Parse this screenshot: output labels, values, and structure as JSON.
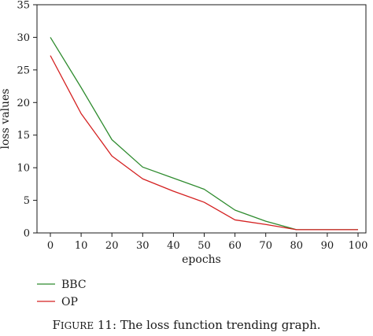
{
  "chart_data": {
    "type": "line",
    "xlabel": "epochs",
    "ylabel": "loss values",
    "xlim": [
      0,
      100
    ],
    "ylim": [
      0,
      35
    ],
    "xticks": [
      0,
      10,
      20,
      30,
      40,
      50,
      60,
      70,
      80,
      90,
      100
    ],
    "yticks": [
      0,
      5,
      10,
      15,
      20,
      25,
      30,
      35
    ],
    "grid": false,
    "legend_position": "bottom-left, below plot",
    "x": [
      0,
      10,
      20,
      30,
      40,
      50,
      60,
      70,
      80,
      90,
      100
    ],
    "series": [
      {
        "name": "BBC",
        "color": "#2e8b2e",
        "values": [
          30,
          22.3,
          14.3,
          10.1,
          8.4,
          6.7,
          3.5,
          1.8,
          0.5,
          0.5,
          0.5
        ]
      },
      {
        "name": "OP",
        "color": "#d42020",
        "values": [
          27.2,
          18.3,
          11.8,
          8.3,
          6.4,
          4.7,
          2.0,
          1.3,
          0.5,
          0.5,
          0.5
        ]
      }
    ]
  },
  "caption": {
    "first_letter": "F",
    "small_caps_rest": "IGURE",
    "text": " 11: The loss function trending graph."
  }
}
